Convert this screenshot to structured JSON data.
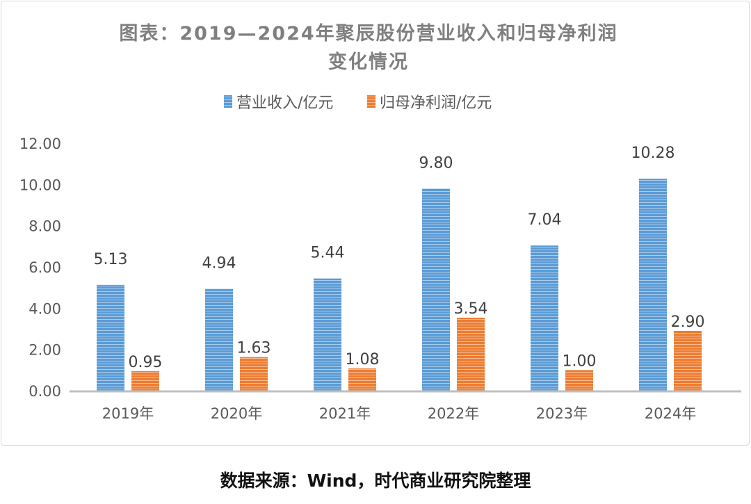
{
  "chart_data": {
    "type": "bar",
    "title_line1": "图表：2019—2024年聚辰股份营业收入和归母净利润",
    "title_line2": "变化情况",
    "categories": [
      "2019年",
      "2020年",
      "2021年",
      "2022年",
      "2023年",
      "2024年"
    ],
    "series": [
      {
        "name": "营业收入/亿元",
        "color": "#5b9bd5",
        "values": [
          5.13,
          4.94,
          5.44,
          9.8,
          7.04,
          10.28
        ],
        "labels": [
          "5.13",
          "4.94",
          "5.44",
          "9.80",
          "7.04",
          "10.28"
        ]
      },
      {
        "name": "归母净利润/亿元",
        "color": "#ed7d31",
        "values": [
          0.95,
          1.63,
          1.08,
          3.54,
          1.0,
          2.9
        ],
        "labels": [
          "0.95",
          "1.63",
          "1.08",
          "3.54",
          "1.00",
          "2.90"
        ]
      }
    ],
    "yticks": [
      "0.00",
      "2.00",
      "4.00",
      "6.00",
      "8.00",
      "10.00",
      "12.00"
    ],
    "ylim": [
      0,
      12
    ],
    "xlabel": "",
    "ylabel": "",
    "grid": false,
    "legend_position": "top-center"
  },
  "source": "数据来源：Wind，时代商业研究院整理"
}
